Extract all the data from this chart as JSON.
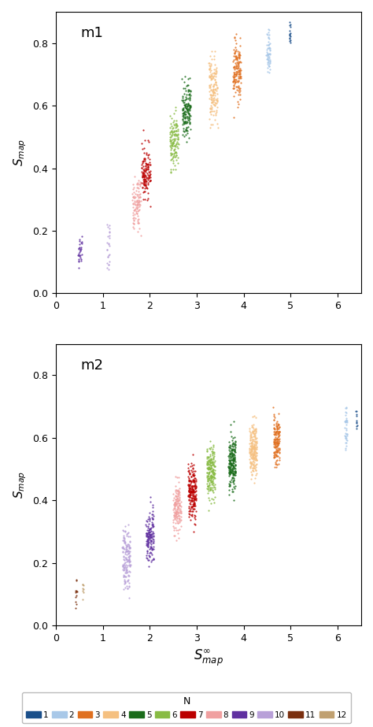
{
  "title_m1": "m1",
  "title_m2": "m2",
  "xlabel": "$S_{map}^{\\infty}$",
  "ylabel": "$S_{map}$",
  "legend_title": "N",
  "xlim": [
    0,
    6.5
  ],
  "ylim": [
    0,
    0.9
  ],
  "xticks": [
    0,
    1,
    2,
    3,
    4,
    5,
    6
  ],
  "yticks": [
    0.0,
    0.2,
    0.4,
    0.6,
    0.8
  ],
  "colors": {
    "1": "#1a4f8a",
    "2": "#a8c8e8",
    "3": "#e07020",
    "4": "#f5c080",
    "5": "#1a6b1a",
    "6": "#88bb44",
    "7": "#bb0000",
    "8": "#f0a0a0",
    "9": "#6030a0",
    "10": "#b8a0d8",
    "11": "#7b3010",
    "12": "#c0a070"
  },
  "seed": 42,
  "figsize": [
    4.74,
    9.23
  ],
  "dpi": 100,
  "m1_clusters": [
    [
      9,
      0.52,
      0.13,
      30,
      0.025,
      0.045,
      0.09
    ],
    [
      10,
      1.12,
      0.17,
      25,
      0.06,
      0.03,
      0.025
    ],
    [
      8,
      1.72,
      0.285,
      100,
      0.04,
      0.085,
      0.1
    ],
    [
      7,
      1.92,
      0.385,
      130,
      0.04,
      0.09,
      0.1
    ],
    [
      6,
      2.52,
      0.485,
      130,
      0.04,
      0.09,
      0.1
    ],
    [
      5,
      2.78,
      0.585,
      150,
      0.04,
      0.09,
      0.1
    ],
    [
      4,
      3.35,
      0.66,
      150,
      0.05,
      0.09,
      0.1
    ],
    [
      3,
      3.85,
      0.715,
      150,
      0.05,
      0.085,
      0.09
    ],
    [
      2,
      4.52,
      0.77,
      60,
      0.04,
      0.04,
      0.04
    ],
    [
      1,
      4.98,
      0.82,
      15,
      0.02,
      0.015,
      0.015
    ]
  ],
  "m2_clusters": [
    [
      11,
      0.43,
      0.105,
      12,
      0.025,
      0.018,
      0.02
    ],
    [
      12,
      0.58,
      0.115,
      8,
      0.02,
      0.012,
      0.012
    ],
    [
      10,
      1.5,
      0.215,
      150,
      0.05,
      0.085,
      0.1
    ],
    [
      9,
      2.0,
      0.285,
      150,
      0.04,
      0.08,
      0.095
    ],
    [
      8,
      2.58,
      0.375,
      150,
      0.04,
      0.085,
      0.095
    ],
    [
      7,
      2.9,
      0.43,
      200,
      0.04,
      0.085,
      0.095
    ],
    [
      6,
      3.3,
      0.49,
      200,
      0.04,
      0.085,
      0.095
    ],
    [
      5,
      3.75,
      0.52,
      200,
      0.04,
      0.075,
      0.09
    ],
    [
      4,
      4.2,
      0.565,
      200,
      0.04,
      0.075,
      0.085
    ],
    [
      3,
      4.7,
      0.59,
      150,
      0.04,
      0.065,
      0.075
    ],
    [
      2,
      6.18,
      0.635,
      40,
      0.04,
      0.025,
      0.025
    ],
    [
      1,
      6.4,
      0.648,
      10,
      0.02,
      0.01,
      0.01
    ]
  ]
}
